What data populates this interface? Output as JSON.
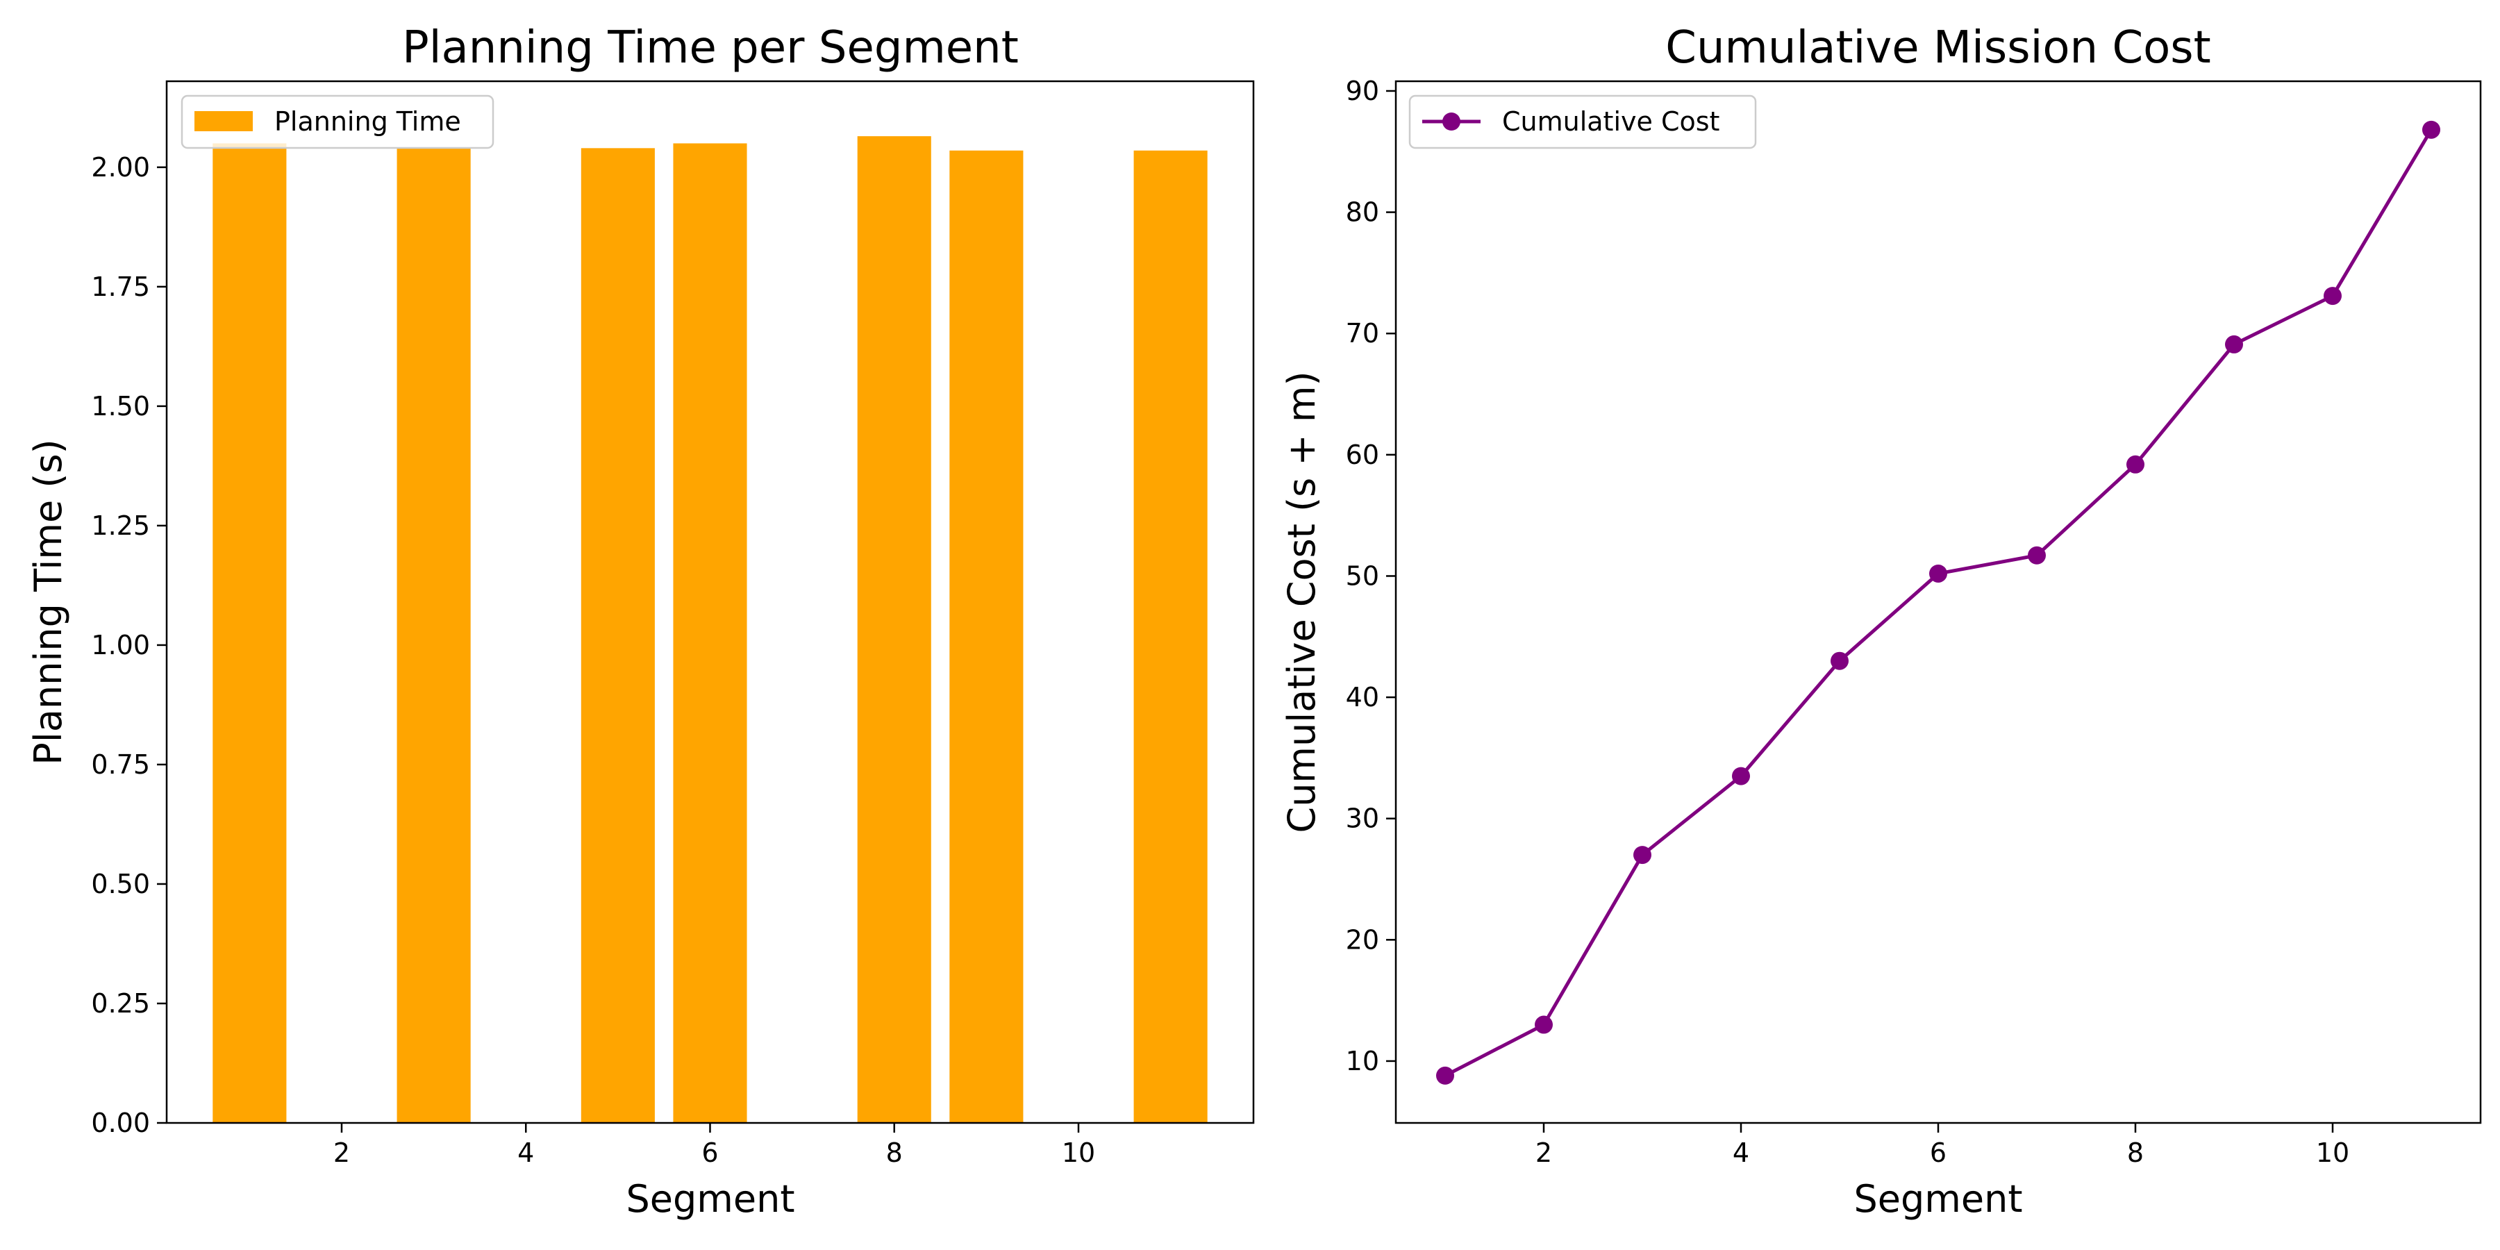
{
  "chart_data": [
    {
      "type": "bar",
      "title": "Planning Time per Segment",
      "xlabel": "Segment",
      "ylabel": "Planning Time (s)",
      "x": [
        1,
        3,
        5,
        6,
        8,
        9,
        11
      ],
      "values": [
        2.05,
        2.04,
        2.04,
        2.05,
        2.065,
        2.035,
        2.035
      ],
      "xlim": [
        0.1,
        11.9
      ],
      "ylim": [
        0,
        2.18
      ],
      "xticks": [
        2,
        4,
        6,
        8,
        10
      ],
      "yticks": [
        0.0,
        0.25,
        0.5,
        0.75,
        1.0,
        1.25,
        1.5,
        1.75,
        2.0
      ],
      "ytick_labels": [
        "0.00",
        "0.25",
        "0.50",
        "0.75",
        "1.00",
        "1.25",
        "1.50",
        "1.75",
        "2.00"
      ],
      "series": [
        {
          "name": "Planning Time",
          "color": "#ffa500"
        }
      ],
      "legend": "upper left",
      "grid": false
    },
    {
      "type": "line",
      "title": "Cumulative Mission Cost",
      "xlabel": "Segment",
      "ylabel": "Cumulative Cost (s + m)",
      "x": [
        1,
        2,
        3,
        4,
        5,
        6,
        7,
        8,
        9,
        10,
        11
      ],
      "series": [
        {
          "name": "Cumulative Cost",
          "color": "#800080",
          "marker": "circle",
          "values": [
            8.8,
            13.0,
            27.0,
            33.5,
            43.0,
            50.2,
            51.7,
            59.2,
            69.1,
            73.1,
            86.8
          ]
        }
      ],
      "xlim": [
        0.5,
        11.5
      ],
      "ylim": [
        4.9,
        90.8
      ],
      "xticks": [
        2,
        4,
        6,
        8,
        10
      ],
      "yticks": [
        10,
        20,
        30,
        40,
        50,
        60,
        70,
        80,
        90
      ],
      "legend": "upper left",
      "grid": false
    }
  ]
}
